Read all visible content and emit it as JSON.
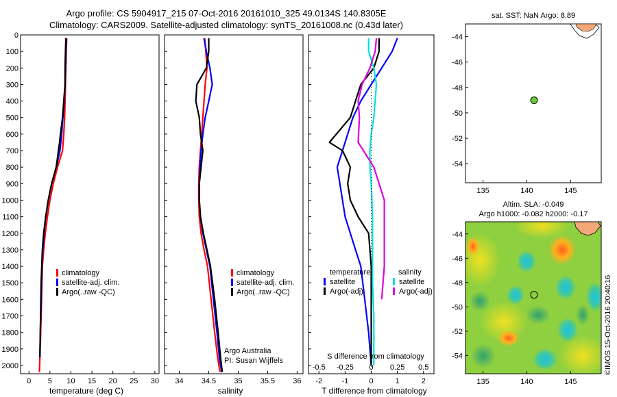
{
  "header": {
    "line1": "Argo profile: CS 5904917_215 07-Oct-2016 20161010_325 49.0134S 140.8305E",
    "line2": "Climatology: CARS2009. Satellite-adjusted climatology: synTS_20161008.nc (0.43d later)"
  },
  "credit": "©IMOS 15-Oct-2016 20:40:16",
  "colors": {
    "climatology": "#ff0000",
    "satellite": "#0000ff",
    "argo": "#000000",
    "sat_diff": "#00e0e0",
    "argo_salt_diff": "#e000e0",
    "float_marker": "#66cc33"
  },
  "chart_data": [
    {
      "type": "line",
      "id": "temperature",
      "xlabel": "temperature (deg C)",
      "xticks": [
        "0",
        "5",
        "10",
        "15",
        "20",
        "25",
        "30"
      ],
      "xlim": [
        -2,
        31
      ],
      "yticks": [
        "0",
        "100",
        "200",
        "300",
        "400",
        "500",
        "600",
        "700",
        "800",
        "900",
        "1000",
        "1100",
        "1200",
        "1300",
        "1400",
        "1500",
        "1600",
        "1700",
        "1800",
        "1900",
        "2000"
      ],
      "ylim": [
        2050,
        0
      ],
      "legend": [
        "climatology",
        "satellite-adj. clim.",
        "Argo(..raw -QC)"
      ],
      "series": [
        {
          "name": "climatology",
          "color": "#ff0000",
          "x": [
            9.0,
            8.9,
            8.8,
            8.7,
            8.6,
            8.5,
            8.3,
            8.0,
            6.8,
            5.8,
            5.0,
            4.4,
            3.9,
            3.5,
            3.2,
            3.0,
            2.8,
            2.6,
            2.5
          ],
          "y": [
            20,
            100,
            200,
            300,
            400,
            500,
            600,
            700,
            800,
            900,
            1000,
            1100,
            1200,
            1300,
            1400,
            1600,
            1800,
            1950,
            2040
          ]
        },
        {
          "name": "satellite-adj. clim.",
          "color": "#0000ff",
          "x": [
            8.9,
            8.8,
            8.7,
            8.6,
            8.4,
            8.1,
            7.8,
            7.4,
            6.5,
            5.4,
            4.6,
            4.0,
            3.6,
            3.3,
            3.1,
            2.9,
            2.7,
            2.6
          ],
          "y": [
            20,
            100,
            200,
            300,
            400,
            500,
            600,
            700,
            800,
            900,
            1000,
            1100,
            1200,
            1300,
            1400,
            1600,
            1800,
            1950
          ]
        },
        {
          "name": "Argo(..raw -QC)",
          "color": "#000000",
          "x": [
            8.8,
            8.7,
            8.6,
            8.6,
            8.3,
            8.0,
            7.5,
            7.3,
            6.5,
            5.4,
            4.6,
            4.0,
            3.5,
            3.2,
            2.9,
            2.6
          ],
          "y": [
            20,
            100,
            200,
            300,
            400,
            500,
            600,
            650,
            800,
            900,
            1000,
            1100,
            1200,
            1300,
            1500,
            1950
          ]
        }
      ]
    },
    {
      "type": "line",
      "id": "salinity",
      "xlabel": "salinity",
      "xticks": [
        "34",
        "34.5",
        "35",
        "35.5",
        "36"
      ],
      "xlim": [
        33.75,
        36.1
      ],
      "ylim": [
        2050,
        0
      ],
      "legend": [
        "climatology",
        "satellite-adj. clim.",
        "Argo(..raw -QC)"
      ],
      "annotation": [
        "Argo Australia",
        "PI: Susan Wijffels"
      ],
      "series": [
        {
          "name": "climatology",
          "color": "#ff0000",
          "x": [
            34.43,
            34.45,
            34.47,
            34.44,
            34.42,
            34.4,
            34.38,
            34.36,
            34.34,
            34.33,
            34.33,
            34.34,
            34.37,
            34.42,
            34.48,
            34.54,
            34.6,
            34.65,
            34.69
          ],
          "y": [
            20,
            100,
            200,
            300,
            400,
            500,
            600,
            700,
            800,
            900,
            1000,
            1100,
            1200,
            1300,
            1400,
            1600,
            1800,
            1950,
            2040
          ]
        },
        {
          "name": "satellite-adj. clim.",
          "color": "#0000ff",
          "x": [
            34.42,
            34.46,
            34.52,
            34.56,
            34.5,
            34.44,
            34.4,
            34.37,
            34.35,
            34.34,
            34.34,
            34.36,
            34.4,
            34.46,
            34.52,
            34.58,
            34.64,
            34.68,
            34.72
          ],
          "y": [
            20,
            100,
            200,
            300,
            400,
            500,
            600,
            700,
            800,
            900,
            1000,
            1100,
            1200,
            1300,
            1400,
            1600,
            1800,
            1950,
            2040
          ]
        },
        {
          "name": "Argo(..raw -QC)",
          "color": "#000000",
          "x": [
            34.5,
            34.5,
            34.46,
            34.3,
            34.28,
            34.34,
            34.36,
            34.4,
            34.37,
            34.34,
            34.34,
            34.36,
            34.41,
            34.47,
            34.53,
            34.6,
            34.66,
            34.7,
            34.73
          ],
          "y": [
            20,
            100,
            200,
            300,
            400,
            500,
            600,
            700,
            800,
            900,
            1000,
            1100,
            1200,
            1300,
            1400,
            1600,
            1800,
            1950,
            2040
          ]
        }
      ]
    },
    {
      "type": "line",
      "id": "differences",
      "xlabel": "T difference from climatology",
      "xticks": [
        "-2",
        "-1",
        "0",
        "1",
        "2"
      ],
      "xlim": [
        -2.4,
        2.4
      ],
      "top_label": "S difference from climatology",
      "top_ticks": [
        "-0.5",
        "-0.25",
        "0",
        "0.25",
        "0.5"
      ],
      "legend_left_title": "temperature",
      "legend_right_title": "salinity",
      "legend": [
        "satellite",
        "Argo(-adj)",
        "satellite",
        "Argo(-adj)"
      ],
      "series": [
        {
          "name": "satellite",
          "group": "temperature",
          "color": "#0000ff",
          "x": [
            1.0,
            0.8,
            0.4,
            0.0,
            -0.4,
            -0.7,
            -0.9,
            -1.1,
            -1.3,
            -1.2,
            -1.1,
            -1.0,
            -0.8,
            -0.6,
            -0.4,
            -0.25,
            -0.1,
            0.0
          ],
          "y": [
            20,
            100,
            200,
            300,
            400,
            500,
            600,
            700,
            800,
            900,
            1000,
            1100,
            1200,
            1300,
            1400,
            1600,
            1800,
            2000
          ]
        },
        {
          "name": "Argo(-adj)",
          "group": "temperature",
          "color": "#000000",
          "x": [
            0.3,
            0.3,
            0.1,
            -0.4,
            -0.6,
            -0.8,
            -1.6,
            -1.1,
            -0.8,
            -0.9,
            -0.8,
            -0.5,
            -0.1,
            0.0,
            0.0,
            0.0,
            0.0
          ],
          "y": [
            20,
            100,
            200,
            300,
            400,
            500,
            650,
            700,
            800,
            900,
            1000,
            1100,
            1200,
            1400,
            1600,
            1800,
            2000
          ]
        },
        {
          "name": "satellite",
          "group": "salinity",
          "color": "#00e0e0",
          "x": [
            -0.1,
            -0.1,
            0.1,
            0.2,
            0.15,
            0.1,
            0.0,
            -0.05,
            -0.05,
            0.0,
            0.05,
            0.05,
            0.05,
            0.1,
            0.1,
            0.1,
            0.1
          ],
          "y": [
            20,
            100,
            200,
            300,
            400,
            500,
            600,
            700,
            800,
            900,
            1100,
            1300,
            1500,
            1700,
            1800,
            1900,
            2000
          ]
        },
        {
          "name": "Argo(-adj)",
          "group": "salinity",
          "color": "#e000e0",
          "x": [
            0.2,
            0.15,
            -0.05,
            -0.35,
            -0.5,
            -0.45,
            -0.5,
            -0.3,
            0.1,
            0.3,
            0.5,
            0.5,
            0.5,
            0.5,
            0.45,
            0.4
          ],
          "y": [
            20,
            100,
            200,
            300,
            400,
            500,
            650,
            700,
            800,
            900,
            1000,
            1100,
            1200,
            1400,
            1500,
            1600
          ]
        }
      ]
    },
    {
      "type": "scatter",
      "id": "map-sst",
      "title": "sat. SST: NaN Argo: 8.89",
      "xticks": [
        "135",
        "140",
        "145"
      ],
      "yticks": [
        "-44",
        "-46",
        "-48",
        "-50",
        "-52",
        "-54"
      ],
      "xlim": [
        133,
        148.5
      ],
      "ylim": [
        -55.5,
        -43
      ],
      "point": {
        "lon": 140.83,
        "lat": -49.01
      }
    },
    {
      "type": "heatmap",
      "id": "map-sla",
      "title_line1": "Altim. SLA: -0.049",
      "title_line2": "Argo h1000: -0.082 h2000: -0.17",
      "xticks": [
        "135",
        "140",
        "145"
      ],
      "yticks": [
        "-44",
        "-46",
        "-48",
        "-50",
        "-52",
        "-54"
      ],
      "xlim": [
        133,
        148.5
      ],
      "ylim": [
        -55.5,
        -43
      ],
      "point": {
        "lon": 140.83,
        "lat": -49.01
      }
    }
  ]
}
